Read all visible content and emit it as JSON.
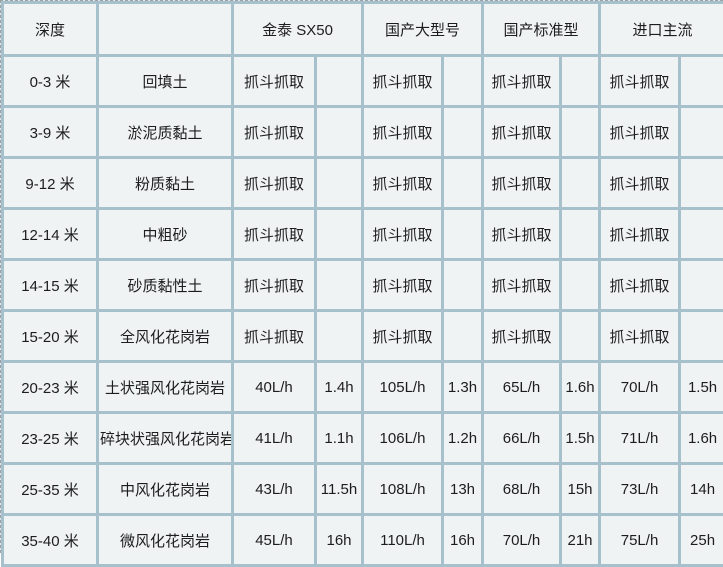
{
  "chart_data": {
    "type": "table",
    "title": "",
    "columns": [
      "深度",
      "",
      "金泰 SX50 (速率)",
      "金泰 SX50 (时间)",
      "国产大型号 (速率)",
      "国产大型号 (时间)",
      "国产标准型 (速率)",
      "国产标准型 (时间)",
      "进口主流 (速率)",
      "进口主流 (时间)"
    ],
    "rows": [
      [
        "0-3 米",
        "回填土",
        "抓斗抓取",
        "",
        "抓斗抓取",
        "",
        "抓斗抓取",
        "",
        "抓斗抓取",
        ""
      ],
      [
        "3-9 米",
        "淤泥质黏土",
        "抓斗抓取",
        "",
        "抓斗抓取",
        "",
        "抓斗抓取",
        "",
        "抓斗抓取",
        ""
      ],
      [
        "9-12 米",
        "粉质黏土",
        "抓斗抓取",
        "",
        "抓斗抓取",
        "",
        "抓斗抓取",
        "",
        "抓斗抓取",
        ""
      ],
      [
        "12-14 米",
        "中粗砂",
        "抓斗抓取",
        "",
        "抓斗抓取",
        "",
        "抓斗抓取",
        "",
        "抓斗抓取",
        ""
      ],
      [
        "14-15 米",
        "砂质黏性土",
        "抓斗抓取",
        "",
        "抓斗抓取",
        "",
        "抓斗抓取",
        "",
        "抓斗抓取",
        ""
      ],
      [
        "15-20 米",
        "全风化花岗岩",
        "抓斗抓取",
        "",
        "抓斗抓取",
        "",
        "抓斗抓取",
        "",
        "抓斗抓取",
        ""
      ],
      [
        "20-23 米",
        "土状强风化花岗岩",
        "40L/h",
        "1.4h",
        "105L/h",
        "1.3h",
        "65L/h",
        "1.6h",
        "70L/h",
        "1.5h"
      ],
      [
        "23-25 米",
        "碎块状强风化花岗岩",
        "41L/h",
        "1.1h",
        "106L/h",
        "1.2h",
        "66L/h",
        "1.5h",
        "71L/h",
        "1.6h"
      ],
      [
        "25-35 米",
        "中风化花岗岩",
        "43L/h",
        "11.5h",
        "108L/h",
        "13h",
        "68L/h",
        "15h",
        "73L/h",
        "14h"
      ],
      [
        "35-40 米",
        "微风化花岗岩",
        "45L/h",
        "16h",
        "110L/h",
        "16h",
        "70L/h",
        "21h",
        "75L/h",
        "25h"
      ]
    ]
  },
  "table": {
    "header": {
      "depth": "深度",
      "soil": "",
      "machines": [
        "金泰 SX50",
        "国产大型号",
        "国产标准型",
        "进口主流"
      ]
    },
    "rows": [
      {
        "depth": "0-3 米",
        "soil": "回填土",
        "cells": [
          "抓斗抓取",
          "",
          "抓斗抓取",
          "",
          "抓斗抓取",
          "",
          "抓斗抓取",
          ""
        ]
      },
      {
        "depth": "3-9 米",
        "soil": "淤泥质黏土",
        "cells": [
          "抓斗抓取",
          "",
          "抓斗抓取",
          "",
          "抓斗抓取",
          "",
          "抓斗抓取",
          ""
        ]
      },
      {
        "depth": "9-12 米",
        "soil": "粉质黏土",
        "cells": [
          "抓斗抓取",
          "",
          "抓斗抓取",
          "",
          "抓斗抓取",
          "",
          "抓斗抓取",
          ""
        ]
      },
      {
        "depth": "12-14 米",
        "soil": "中粗砂",
        "cells": [
          "抓斗抓取",
          "",
          "抓斗抓取",
          "",
          "抓斗抓取",
          "",
          "抓斗抓取",
          ""
        ]
      },
      {
        "depth": "14-15 米",
        "soil": "砂质黏性土",
        "cells": [
          "抓斗抓取",
          "",
          "抓斗抓取",
          "",
          "抓斗抓取",
          "",
          "抓斗抓取",
          ""
        ]
      },
      {
        "depth": "15-20 米",
        "soil": "全风化花岗岩",
        "cells": [
          "抓斗抓取",
          "",
          "抓斗抓取",
          "",
          "抓斗抓取",
          "",
          "抓斗抓取",
          ""
        ]
      },
      {
        "depth": "20-23 米",
        "soil": "土状强风化花岗岩",
        "cells": [
          "40L/h",
          "1.4h",
          "105L/h",
          "1.3h",
          "65L/h",
          "1.6h",
          "70L/h",
          "1.5h"
        ]
      },
      {
        "depth": "23-25 米",
        "soil": "碎块状强风化花岗岩",
        "cells": [
          "41L/h",
          "1.1h",
          "106L/h",
          "1.2h",
          "66L/h",
          "1.5h",
          "71L/h",
          "1.6h"
        ]
      },
      {
        "depth": "25-35 米",
        "soil": "中风化花岗岩",
        "cells": [
          "43L/h",
          "11.5h",
          "108L/h",
          "13h",
          "68L/h",
          "15h",
          "73L/h",
          "14h"
        ]
      },
      {
        "depth": "35-40 米",
        "soil": "微风化花岗岩",
        "cells": [
          "45L/h",
          "16h",
          "110L/h",
          "16h",
          "70L/h",
          "21h",
          "75L/h",
          "25h"
        ]
      }
    ],
    "colors": {
      "grid_border": "#a6c0cc",
      "cell_background": "#eff3f4",
      "text": "#1d1d1d",
      "outer_dashed_outline": "#9aa3a8"
    }
  }
}
